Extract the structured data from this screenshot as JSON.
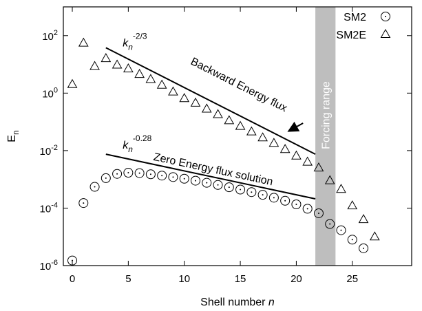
{
  "chart_data": {
    "type": "scatter",
    "xlabel": "Shell number",
    "xlabel_var": "n",
    "ylabel": "E",
    "ylabel_sub": "n",
    "x_scale": "linear",
    "y_scale": "log",
    "xlim": [
      -0.8,
      30.3
    ],
    "ylim": [
      1e-06,
      1000
    ],
    "x_ticks": [
      0,
      5,
      10,
      15,
      20,
      25
    ],
    "y_ticks": [
      {
        "base": "10",
        "exp": "-6",
        "value": 1e-06
      },
      {
        "base": "10",
        "exp": "-4",
        "value": 0.0001
      },
      {
        "base": "10",
        "exp": "-2",
        "value": 0.01
      },
      {
        "base": "10",
        "exp": "0",
        "value": 1
      },
      {
        "base": "10",
        "exp": "2",
        "value": 100
      }
    ],
    "grid": false,
    "legend": "top-right",
    "series": [
      {
        "name": "SM2",
        "marker": "circle-dot",
        "x": [
          0,
          1,
          2,
          3,
          4,
          5,
          6,
          7,
          8,
          9,
          10,
          11,
          12,
          13,
          14,
          15,
          16,
          17,
          18,
          19,
          20,
          21,
          22,
          23,
          24,
          25,
          26
        ],
        "y": [
          1.5e-06,
          0.00015,
          0.00055,
          0.0011,
          0.00155,
          0.0017,
          0.00165,
          0.0015,
          0.00135,
          0.0012,
          0.00105,
          0.0009,
          0.00076,
          0.00064,
          0.00053,
          0.00044,
          0.00036,
          0.00029,
          0.00023,
          0.00018,
          0.000135,
          9.5e-05,
          6.6e-05,
          2.8e-05,
          1.7e-05,
          8e-06,
          4e-06
        ]
      },
      {
        "name": "SM2E",
        "marker": "triangle",
        "x": [
          0,
          1,
          2,
          3,
          4,
          5,
          6,
          7,
          8,
          9,
          10,
          11,
          12,
          13,
          14,
          15,
          16,
          17,
          18,
          19,
          20,
          21,
          22,
          23,
          24,
          25,
          26,
          27
        ],
        "y": [
          2,
          55,
          8.5,
          16,
          9.5,
          7,
          4.5,
          3,
          1.9,
          1.1,
          0.65,
          0.45,
          0.28,
          0.18,
          0.11,
          0.07,
          0.045,
          0.028,
          0.018,
          0.011,
          0.0065,
          0.004,
          0.0025,
          0.0009,
          0.00045,
          0.00012,
          4e-05,
          1e-05
        ]
      }
    ],
    "reference_lines": [
      {
        "x": [
          3,
          21.7
        ],
        "y": [
          38,
          0.0075
        ]
      },
      {
        "x": [
          3,
          21.7
        ],
        "y": [
          0.0075,
          0.00021
        ]
      }
    ],
    "annotations": {
      "kn_base": "k",
      "kn_sub": "n",
      "slope1_exp": "-2/3",
      "slope2_exp": "-0.28",
      "backward_flux": "Backward Energy flux",
      "zero_flux": "Zero Energy flux solution",
      "forcing": "Forcing range"
    },
    "forcing_band": [
      21.7,
      23.5
    ],
    "colors": {
      "band": "#bebebe",
      "markers": "#000000",
      "background": "#ffffff"
    }
  }
}
